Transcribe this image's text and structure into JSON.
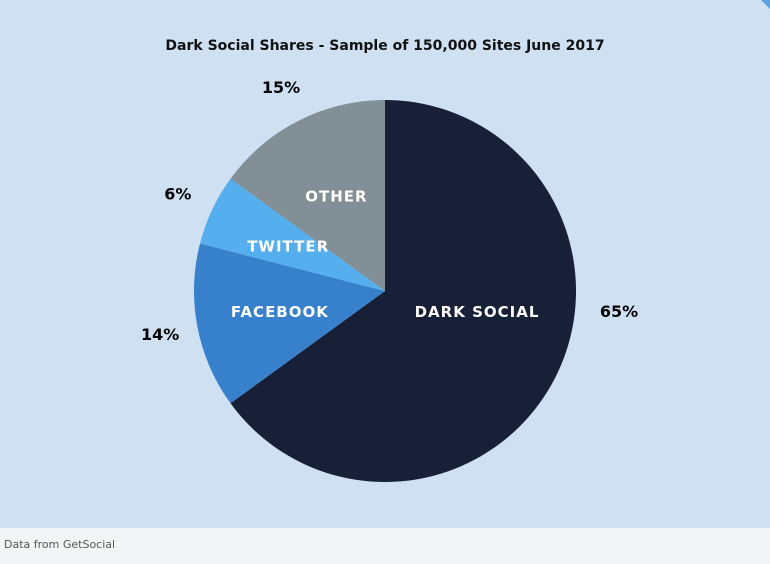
{
  "chart_data": {
    "type": "pie",
    "title": "Dark Social Shares - Sample of 150,000 Sites June 2017",
    "slices": [
      {
        "label": "DARK SOCIAL",
        "value": 65,
        "percent_label": "65%",
        "color": "#172036"
      },
      {
        "label": "FACEBOOK",
        "value": 14,
        "percent_label": "14%",
        "color": "#3780cc"
      },
      {
        "label": "TWITTER",
        "value": 6,
        "percent_label": "6%",
        "color": "#55aeee"
      },
      {
        "label": "OTHER",
        "value": 15,
        "percent_label": "15%",
        "color": "#828f96"
      }
    ],
    "direction": "clockwise",
    "start": "top"
  },
  "footer": {
    "source_text": "Data from GetSocial"
  },
  "colors": {
    "panel_background": "#cfe0f3",
    "page_background": "#f3f4f6",
    "corner_accent": "#5aa3e0"
  }
}
